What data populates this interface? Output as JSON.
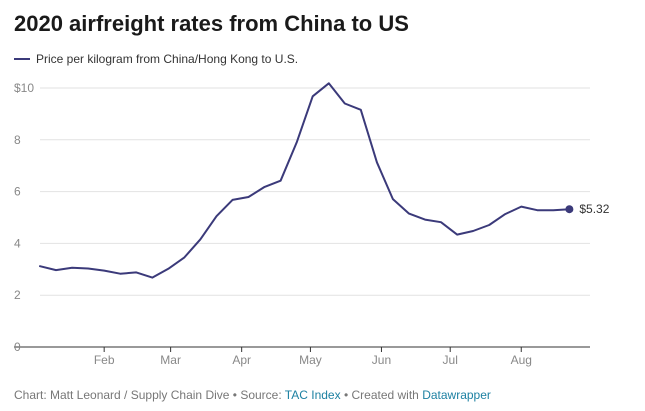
{
  "colors": {
    "series": "#3b3a7a",
    "grid": "#e2e2e2",
    "axis": "#333333",
    "tick_text": "#888888",
    "link": "#1d81a2"
  },
  "footer": {
    "prefix": "Chart: Matt Leonard / Supply Chain Dive • Source: ",
    "source_link": "TAC Index",
    "middle": " • Created with ",
    "tool_link": "Datawrapper"
  },
  "chart_data": {
    "type": "line",
    "title": "2020 airfreight rates from China to US",
    "xlabel": "",
    "ylabel": "",
    "series": [
      {
        "name": "Price per kilogram from China/Hong Kong to U.S.",
        "x": [
          "2020-01-04",
          "2020-01-11",
          "2020-01-18",
          "2020-01-25",
          "2020-02-01",
          "2020-02-08",
          "2020-02-15",
          "2020-02-22",
          "2020-02-29",
          "2020-03-07",
          "2020-03-14",
          "2020-03-21",
          "2020-03-28",
          "2020-04-04",
          "2020-04-11",
          "2020-04-18",
          "2020-04-25",
          "2020-05-02",
          "2020-05-09",
          "2020-05-16",
          "2020-05-23",
          "2020-05-30",
          "2020-06-06",
          "2020-06-13",
          "2020-06-20",
          "2020-06-27",
          "2020-07-04",
          "2020-07-11",
          "2020-07-18",
          "2020-07-25",
          "2020-08-01",
          "2020-08-08",
          "2020-08-15",
          "2020-08-22"
        ],
        "values": [
          3.12,
          2.97,
          3.06,
          3.03,
          2.95,
          2.83,
          2.88,
          2.68,
          3.02,
          3.46,
          4.16,
          5.05,
          5.68,
          5.79,
          6.18,
          6.42,
          7.9,
          9.68,
          10.18,
          9.4,
          9.16,
          7.13,
          5.71,
          5.15,
          4.92,
          4.82,
          4.34,
          4.48,
          4.71,
          5.13,
          5.42,
          5.28,
          5.28,
          5.32
        ]
      }
    ],
    "end_label": "$5.32",
    "ylim": [
      0,
      10
    ],
    "yticks": [
      0,
      2,
      4,
      6,
      8,
      10
    ],
    "ytick_labels": [
      "0",
      "2",
      "4",
      "6",
      "8",
      "$10"
    ],
    "xticks": [
      {
        "date": "2020-02-01",
        "label": "Feb"
      },
      {
        "date": "2020-03-01",
        "label": "Mar"
      },
      {
        "date": "2020-04-01",
        "label": "Apr"
      },
      {
        "date": "2020-05-01",
        "label": "May"
      },
      {
        "date": "2020-06-01",
        "label": "Jun"
      },
      {
        "date": "2020-07-01",
        "label": "Jul"
      },
      {
        "date": "2020-08-01",
        "label": "Aug"
      }
    ],
    "xlim": [
      "2020-01-04",
      "2020-08-31"
    ],
    "grid": true,
    "legend": "top-left"
  }
}
